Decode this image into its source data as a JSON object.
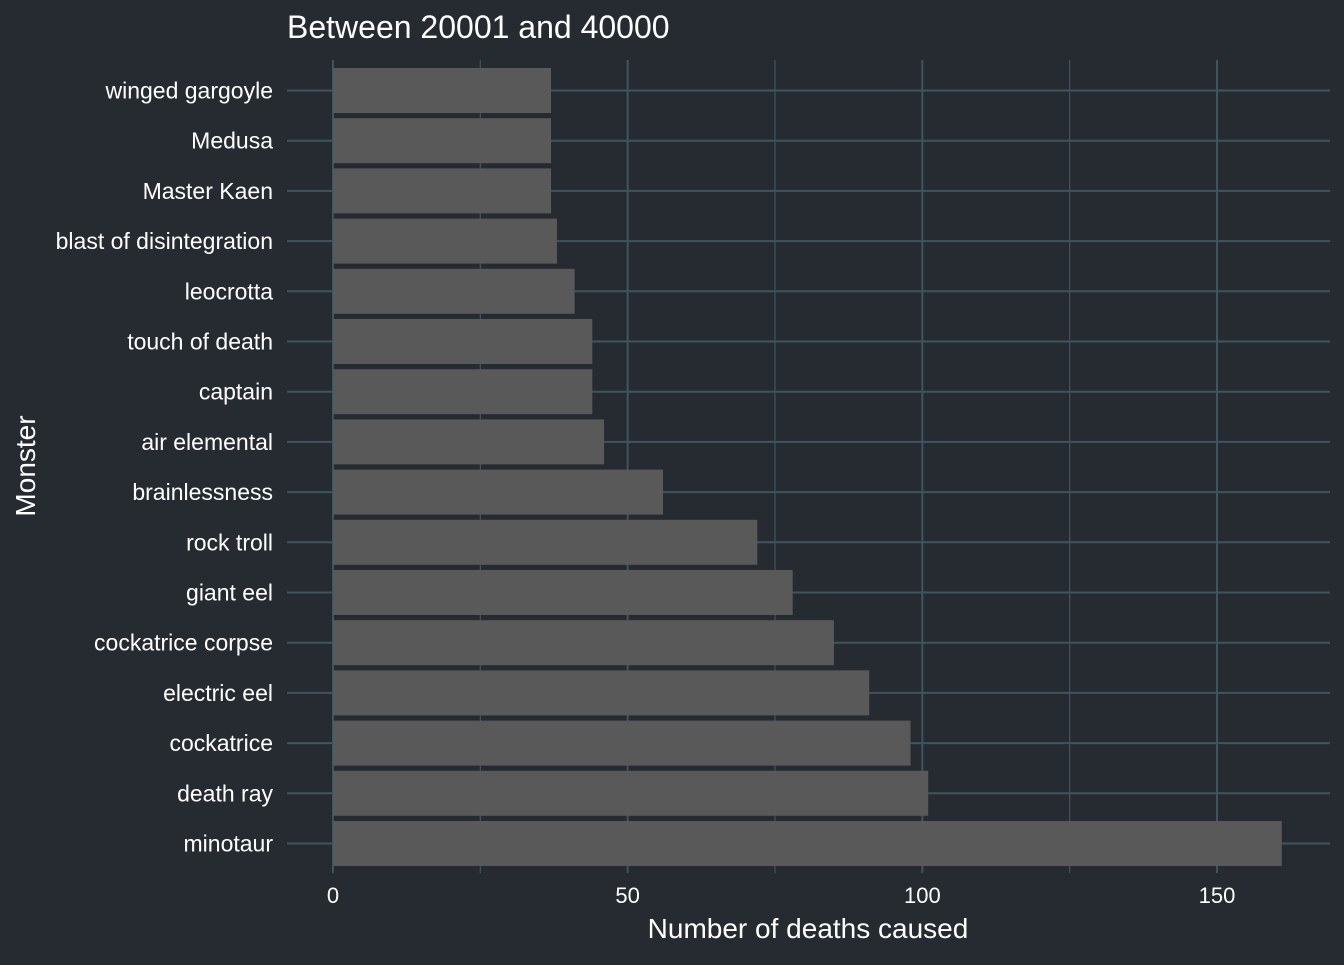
{
  "colors": {
    "background": "#262a31",
    "grid": "#3e5560",
    "bar": "#595959",
    "text": "#ffffff"
  },
  "chart_data": {
    "type": "bar",
    "orientation": "horizontal",
    "title": "Between 20001 and 40000",
    "xlabel": "Number of deaths caused",
    "ylabel": "Monster",
    "categories": [
      "winged gargoyle",
      "Medusa",
      "Master Kaen",
      "blast of disintegration",
      "leocrotta",
      "touch of death",
      "captain",
      "air elemental",
      "brainlessness",
      "rock troll",
      "giant eel",
      "cockatrice corpse",
      "electric eel",
      "cockatrice",
      "death ray",
      "minotaur"
    ],
    "values": [
      37,
      37,
      37,
      38,
      41,
      44,
      44,
      46,
      56,
      72,
      78,
      85,
      91,
      98,
      101,
      161
    ],
    "xlim": [
      -7.5,
      169
    ],
    "xticks": [
      0,
      50,
      100,
      150
    ],
    "xtick_labels": [
      "0",
      "50",
      "100",
      "150"
    ],
    "grid": true
  }
}
